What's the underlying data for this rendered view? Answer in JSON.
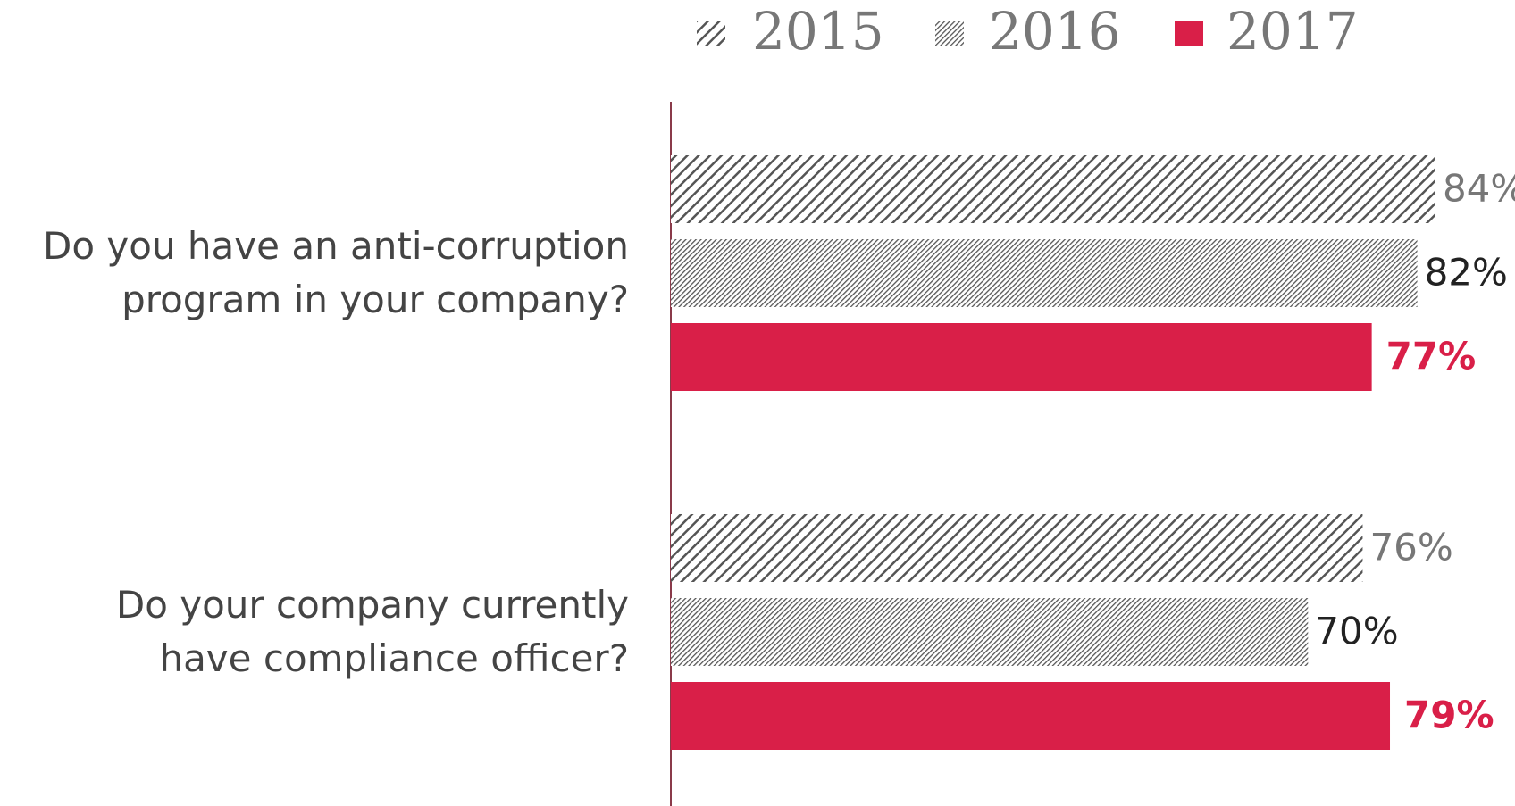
{
  "chart_data": {
    "type": "bar",
    "orientation": "horizontal",
    "categories": [
      "Do you have an anti-corruption program in your company?",
      "Do your company currently have compliance officer?"
    ],
    "series": [
      {
        "name": "2015",
        "color": "#555555",
        "fill_style": "wide-hatch",
        "label_color": "#777777",
        "values": [
          84,
          76
        ],
        "value_labels": [
          "84%",
          "76%"
        ]
      },
      {
        "name": "2016",
        "color": "#555555",
        "fill_style": "fine-hatch",
        "label_color": "#222222",
        "values": [
          82,
          70
        ],
        "value_labels": [
          "82%",
          "70%"
        ]
      },
      {
        "name": "2017",
        "color": "#d91f48",
        "fill_style": "solid",
        "label_color": "#d91f48",
        "label_bold": true,
        "values": [
          77,
          79
        ],
        "value_labels": [
          "77%",
          "79%"
        ]
      }
    ],
    "legend": "top-right"
  }
}
